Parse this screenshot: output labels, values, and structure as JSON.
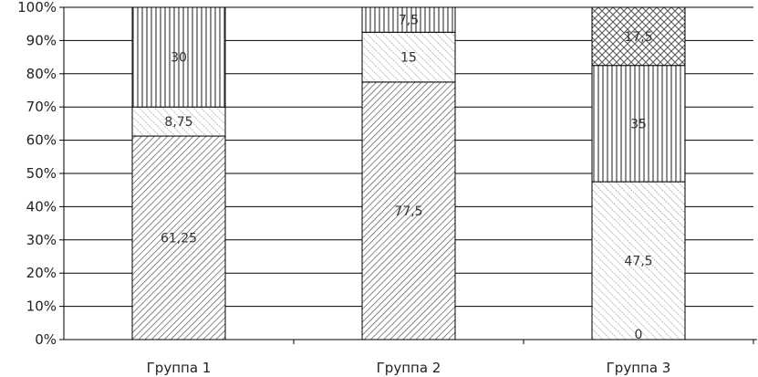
{
  "chart_data": {
    "type": "bar",
    "stacked": true,
    "percent_stacked": true,
    "categories": [
      "Группа 1",
      "Группа 2",
      "Группа 3"
    ],
    "series": [
      {
        "values": [
          61.25,
          77.5,
          0
        ],
        "labels": [
          "61,25",
          "77,5",
          "0"
        ],
        "pattern": "diag-dense"
      },
      {
        "values": [
          8.75,
          15,
          47.5
        ],
        "labels": [
          "8,75",
          "15",
          "47,5"
        ],
        "pattern": "diag-zigzag"
      },
      {
        "values": [
          30,
          7.5,
          35
        ],
        "labels": [
          "30",
          "7,5",
          "35"
        ],
        "pattern": "vertical"
      },
      {
        "values": [
          0,
          0,
          17.5
        ],
        "labels": [
          "",
          "",
          "17,5"
        ],
        "pattern": "crosshatch"
      }
    ],
    "yticks": [
      "0%",
      "10%",
      "20%",
      "30%",
      "40%",
      "50%",
      "60%",
      "70%",
      "80%",
      "90%",
      "100%"
    ],
    "ylim": [
      0,
      100
    ],
    "title": "",
    "xlabel": "",
    "ylabel": "",
    "grid": true,
    "legend": "none"
  }
}
